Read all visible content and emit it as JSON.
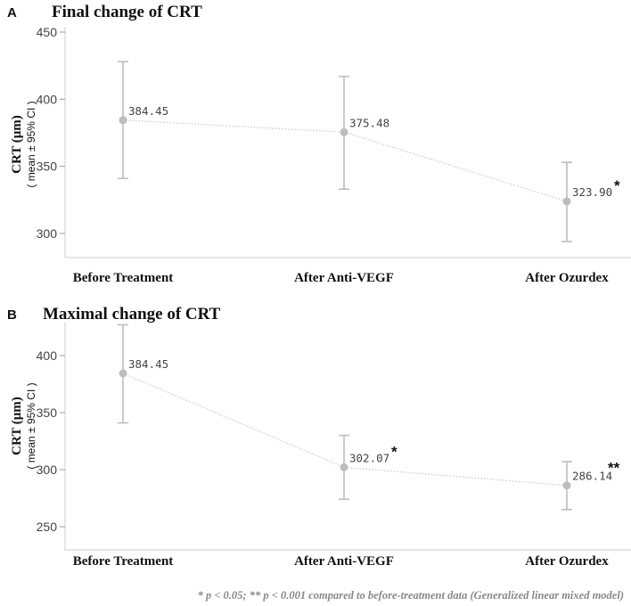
{
  "chart_data": [
    {
      "type": "line",
      "panel": "A",
      "title": "Final change of CRT",
      "ylabel": "CRT (μm)",
      "ylabel_sub": "( mean ± 95% CI )",
      "categories": [
        "Before Treatment",
        "After Anti-VEGF",
        "After Ozurdex"
      ],
      "values": [
        384.45,
        375.48,
        323.9
      ],
      "ci_lower": [
        341,
        333,
        294
      ],
      "ci_upper": [
        428,
        417,
        353
      ],
      "labels": [
        "384.45",
        "375.48",
        "323.90"
      ],
      "significance": [
        "",
        "",
        "*"
      ],
      "yticks": [
        300,
        350,
        400,
        450
      ],
      "ytick_labels": [
        "300",
        "350",
        "400",
        "450"
      ],
      "ylim": [
        280,
        450
      ]
    },
    {
      "type": "line",
      "panel": "B",
      "title": "Maximal change of CRT",
      "ylabel": "CRT (μm)",
      "ylabel_sub": "( mean ± 95% CI )",
      "categories": [
        "Before Treatment",
        "After Anti-VEGF",
        "After Ozurdex"
      ],
      "values": [
        384.45,
        302.07,
        286.14
      ],
      "ci_lower": [
        341,
        274,
        265
      ],
      "ci_upper": [
        427,
        330,
        307
      ],
      "labels": [
        "384.45",
        "302.07",
        "286.14"
      ],
      "significance": [
        "",
        "*",
        "**"
      ],
      "yticks": [
        250,
        300,
        350,
        400
      ],
      "ytick_labels": [
        "250",
        "300",
        "350",
        "400"
      ],
      "ylim": [
        230,
        430
      ]
    }
  ],
  "footnote": "*  p < 0.05; ** p < 0.001 compared to before-treatment data (Generalized linear mixed model)",
  "colors": {
    "marker": "#bdbdbd",
    "axis": "#cccccc",
    "text": "#111111"
  }
}
